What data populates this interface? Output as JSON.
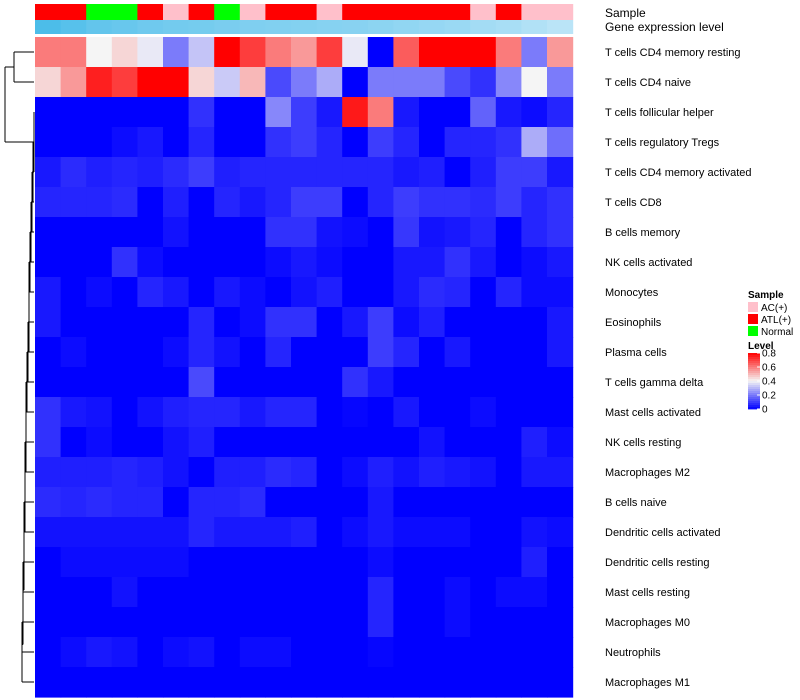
{
  "chart_data": {
    "type": "heatmap",
    "annotation_tracks": [
      {
        "title": "Sample"
      },
      {
        "title": "Gene expression level"
      }
    ],
    "columns": {
      "sample": [
        "ATL(+)",
        "ATL(+)",
        "Normal",
        "Normal",
        "ATL(+)",
        "AC(+)",
        "ATL(+)",
        "Normal",
        "AC(+)",
        "ATL(+)",
        "ATL(+)",
        "AC(+)",
        "ATL(+)",
        "ATL(+)",
        "ATL(+)",
        "ATL(+)",
        "ATL(+)",
        "AC(+)",
        "ATL(+)",
        "AC(+)",
        "AC(+)"
      ],
      "gene_expression_level": [
        0.6,
        0.55,
        0.5,
        0.48,
        0.45,
        0.43,
        0.42,
        0.4,
        0.38,
        0.37,
        0.36,
        0.35,
        0.34,
        0.32,
        0.3,
        0.28,
        0.26,
        0.22,
        0.2,
        0.16,
        0.12
      ]
    },
    "rows": [
      "T cells CD4 memory resting",
      "T cells CD4 naive",
      "T cells follicular helper",
      "T cells regulatory  Tregs",
      "T cells CD4 memory activated",
      "T cells CD8",
      "B cells memory",
      "NK cells activated",
      "Monocytes",
      "Eosinophils",
      "Plasma cells",
      "T cells gamma delta",
      "Mast cells activated",
      "NK cells resting",
      "Macrophages M2",
      "B cells naive",
      "Dendritic cells activated",
      "Dendritic cells resting",
      "Mast cells resting",
      "Macrophages M0",
      "Neutrophils",
      "Macrophages M1"
    ],
    "values": [
      [
        0.6,
        0.6,
        0.4,
        0.45,
        0.38,
        0.2,
        0.32,
        0.8,
        0.7,
        0.6,
        0.55,
        0.7,
        0.38,
        0.0,
        0.65,
        0.8,
        0.8,
        0.8,
        0.6,
        0.2,
        0.55
      ],
      [
        0.45,
        0.55,
        0.75,
        0.7,
        0.8,
        0.8,
        0.45,
        0.33,
        0.5,
        0.12,
        0.2,
        0.28,
        0.0,
        0.2,
        0.2,
        0.2,
        0.12,
        0.08,
        0.22,
        0.4,
        0.2
      ],
      [
        0.0,
        0.0,
        0.0,
        0.0,
        0.0,
        0.0,
        0.08,
        0.0,
        0.0,
        0.22,
        0.1,
        0.04,
        0.76,
        0.6,
        0.04,
        0.0,
        0.0,
        0.16,
        0.04,
        0.02,
        0.06
      ],
      [
        0.0,
        0.0,
        0.0,
        0.02,
        0.04,
        0.0,
        0.06,
        0.0,
        0.0,
        0.08,
        0.1,
        0.06,
        0.0,
        0.1,
        0.06,
        0.0,
        0.06,
        0.06,
        0.08,
        0.28,
        0.18
      ],
      [
        0.04,
        0.07,
        0.05,
        0.06,
        0.05,
        0.07,
        0.1,
        0.05,
        0.06,
        0.06,
        0.06,
        0.06,
        0.06,
        0.06,
        0.04,
        0.05,
        0.0,
        0.05,
        0.1,
        0.1,
        0.04
      ],
      [
        0.06,
        0.06,
        0.06,
        0.07,
        0.0,
        0.05,
        0.0,
        0.06,
        0.04,
        0.06,
        0.1,
        0.1,
        0.0,
        0.06,
        0.1,
        0.08,
        0.08,
        0.07,
        0.1,
        0.06,
        0.08
      ],
      [
        0.0,
        0.0,
        0.0,
        0.0,
        0.0,
        0.03,
        0.0,
        0.0,
        0.0,
        0.08,
        0.08,
        0.03,
        0.02,
        0.0,
        0.09,
        0.03,
        0.04,
        0.06,
        0.0,
        0.06,
        0.08
      ],
      [
        0.0,
        0.0,
        0.0,
        0.08,
        0.02,
        0.0,
        0.0,
        0.0,
        0.0,
        0.02,
        0.04,
        0.02,
        0.0,
        0.0,
        0.04,
        0.04,
        0.08,
        0.04,
        0.0,
        0.02,
        0.04
      ],
      [
        0.04,
        0.0,
        0.02,
        0.0,
        0.06,
        0.04,
        0.0,
        0.04,
        0.02,
        0.0,
        0.03,
        0.05,
        0.0,
        0.0,
        0.04,
        0.07,
        0.06,
        0.0,
        0.06,
        0.02,
        0.02
      ],
      [
        0.04,
        0.0,
        0.0,
        0.0,
        0.0,
        0.0,
        0.06,
        0.0,
        0.02,
        0.08,
        0.08,
        0.0,
        0.04,
        0.1,
        0.02,
        0.05,
        0.0,
        0.0,
        0.0,
        0.0,
        0.04
      ],
      [
        0.0,
        0.02,
        0.0,
        0.0,
        0.0,
        0.02,
        0.06,
        0.03,
        0.0,
        0.06,
        0.0,
        0.0,
        0.0,
        0.1,
        0.06,
        0.0,
        0.04,
        0.0,
        0.0,
        0.0,
        0.04
      ],
      [
        0.0,
        0.0,
        0.0,
        0.0,
        0.0,
        0.0,
        0.12,
        0.0,
        0.0,
        0.0,
        0.0,
        0.0,
        0.08,
        0.04,
        0.0,
        0.0,
        0.0,
        0.0,
        0.0,
        0.0,
        0.0
      ],
      [
        0.08,
        0.04,
        0.03,
        0.0,
        0.03,
        0.05,
        0.06,
        0.06,
        0.04,
        0.06,
        0.06,
        0.0,
        0.01,
        0.0,
        0.04,
        0.0,
        0.0,
        0.02,
        0.0,
        0.0,
        0.0
      ],
      [
        0.08,
        0.0,
        0.02,
        0.0,
        0.0,
        0.03,
        0.05,
        0.0,
        0.0,
        0.0,
        0.0,
        0.0,
        0.0,
        0.0,
        0.0,
        0.03,
        0.0,
        0.0,
        0.0,
        0.05,
        0.02
      ],
      [
        0.05,
        0.05,
        0.05,
        0.06,
        0.05,
        0.03,
        0.0,
        0.05,
        0.05,
        0.07,
        0.06,
        0.0,
        0.02,
        0.05,
        0.03,
        0.05,
        0.04,
        0.03,
        0.0,
        0.04,
        0.04
      ],
      [
        0.07,
        0.06,
        0.07,
        0.06,
        0.06,
        0.0,
        0.06,
        0.06,
        0.07,
        0.0,
        0.0,
        0.0,
        0.0,
        0.04,
        0.0,
        0.0,
        0.0,
        0.0,
        0.0,
        0.0,
        0.0
      ],
      [
        0.03,
        0.03,
        0.03,
        0.03,
        0.03,
        0.03,
        0.06,
        0.04,
        0.04,
        0.04,
        0.05,
        0.0,
        0.02,
        0.04,
        0.02,
        0.02,
        0.02,
        0.0,
        0.0,
        0.03,
        0.02
      ],
      [
        0.0,
        0.02,
        0.02,
        0.02,
        0.02,
        0.02,
        0.0,
        0.0,
        0.0,
        0.0,
        0.0,
        0.0,
        0.0,
        0.02,
        0.0,
        0.0,
        0.0,
        0.0,
        0.0,
        0.05,
        0.0
      ],
      [
        0.0,
        0.0,
        0.0,
        0.03,
        0.0,
        0.0,
        0.0,
        0.0,
        0.0,
        0.0,
        0.0,
        0.0,
        0.0,
        0.06,
        0.0,
        0.0,
        0.02,
        0.0,
        0.02,
        0.02,
        0.0
      ],
      [
        0.0,
        0.0,
        0.0,
        0.0,
        0.0,
        0.0,
        0.0,
        0.0,
        0.0,
        0.0,
        0.0,
        0.0,
        0.0,
        0.06,
        0.0,
        0.0,
        0.02,
        0.0,
        0.0,
        0.0,
        0.0
      ],
      [
        0.0,
        0.02,
        0.04,
        0.03,
        0.0,
        0.02,
        0.03,
        0.0,
        0.02,
        0.02,
        0.0,
        0.0,
        0.0,
        0.01,
        0.0,
        0.0,
        0.0,
        0.0,
        0.0,
        0.0,
        0.0
      ],
      [
        0.0,
        0.0,
        0.0,
        0.0,
        0.0,
        0.0,
        0.0,
        0.0,
        0.0,
        0.0,
        0.0,
        0.0,
        0.0,
        0.0,
        0.0,
        0.0,
        0.0,
        0.0,
        0.0,
        0.0,
        0.0
      ]
    ],
    "color_scale": {
      "stops": [
        {
          "value": 0.0,
          "color": "#0000ff"
        },
        {
          "value": 0.4,
          "color": "#f5f5f5"
        },
        {
          "value": 0.8,
          "color": "#ff0000"
        }
      ],
      "range": [
        0,
        0.8
      ]
    },
    "expression_scale": {
      "low_color": "#bfe6f8",
      "high_color": "#4cbde9",
      "range": [
        0.1,
        0.6
      ]
    },
    "sample_colors": {
      "AC(+)": "#ffc0cb",
      "ATL(+)": "#ff0000",
      "Normal": "#00ff00"
    },
    "legend": {
      "placement": "right",
      "sample": {
        "title": "Sample",
        "entries": [
          "AC(+)",
          "ATL(+)",
          "Normal"
        ]
      },
      "level": {
        "title": "Level",
        "ticks": [
          "0.8",
          "0.6",
          "0.4",
          "0.2",
          "0"
        ]
      }
    },
    "dendrogram": "rows"
  }
}
